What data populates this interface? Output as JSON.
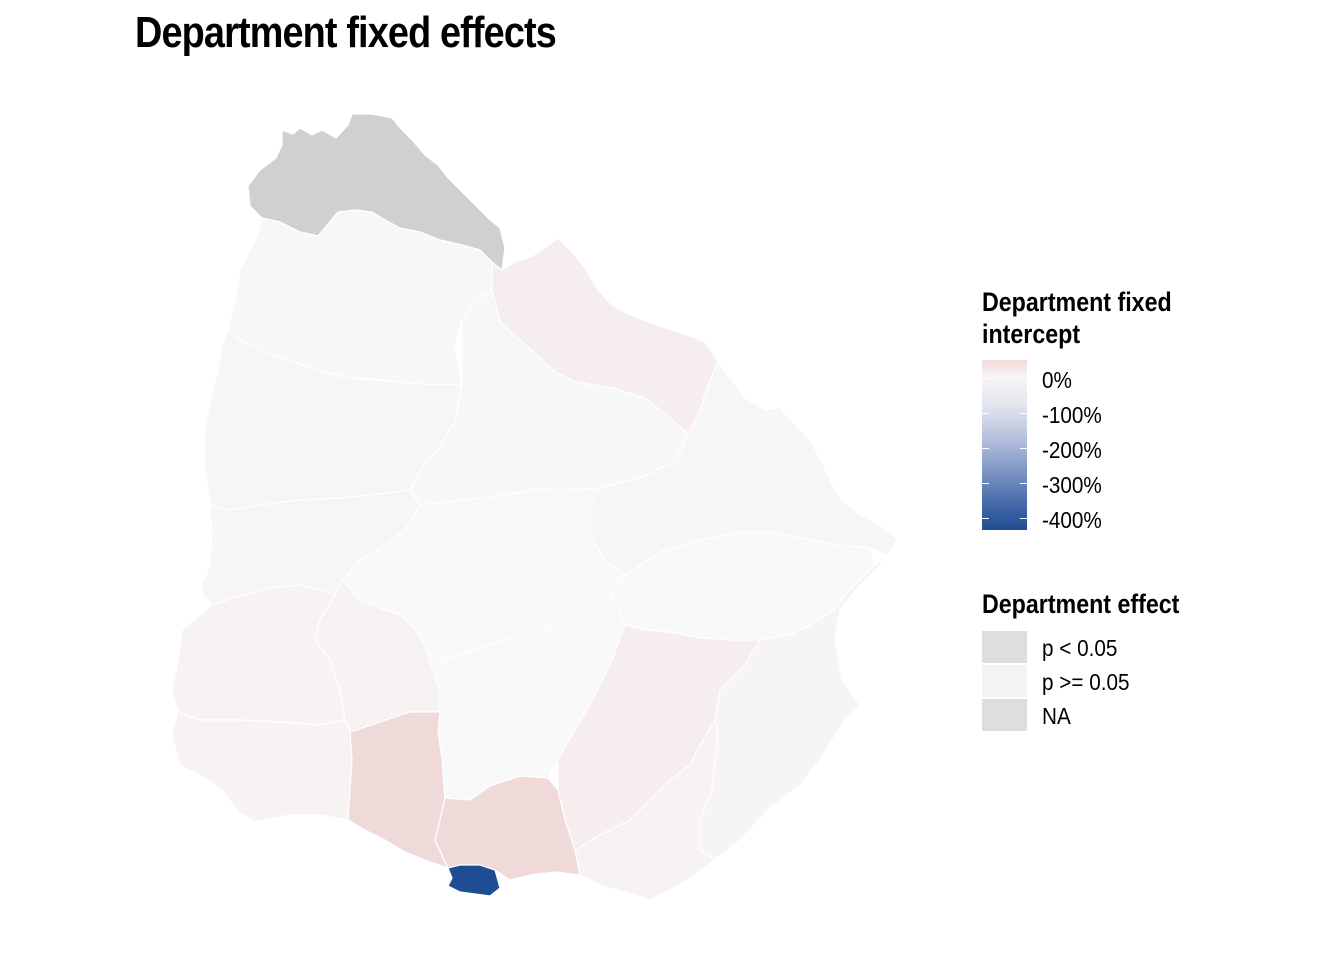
{
  "title": "Department fixed effects",
  "legend_gradient": {
    "title_line1": "Department fixed",
    "title_line2": "intercept",
    "labels": [
      "0%",
      "-100%",
      "-200%",
      "-300%",
      "-400%"
    ],
    "low_color": "#1f4d93",
    "mid_color": "#f7f4f4",
    "high_color": "#f2d9d9"
  },
  "legend_significance": {
    "title": "Department effect",
    "items": [
      {
        "label": "p < 0.05",
        "color": "#dedede"
      },
      {
        "label": "p >= 0.05",
        "color": "#f3f3f3"
      },
      {
        "label": "NA",
        "color": "#dedede"
      }
    ]
  },
  "colors": {
    "na": "#d0d0d0",
    "neutral": "#f7f7f7",
    "neutral_warm": "#f7f4f4",
    "light_pink": "#f6eeee",
    "pink": "#f0d9d9",
    "blue": "#1f4d93",
    "border": "#ffffff"
  }
}
